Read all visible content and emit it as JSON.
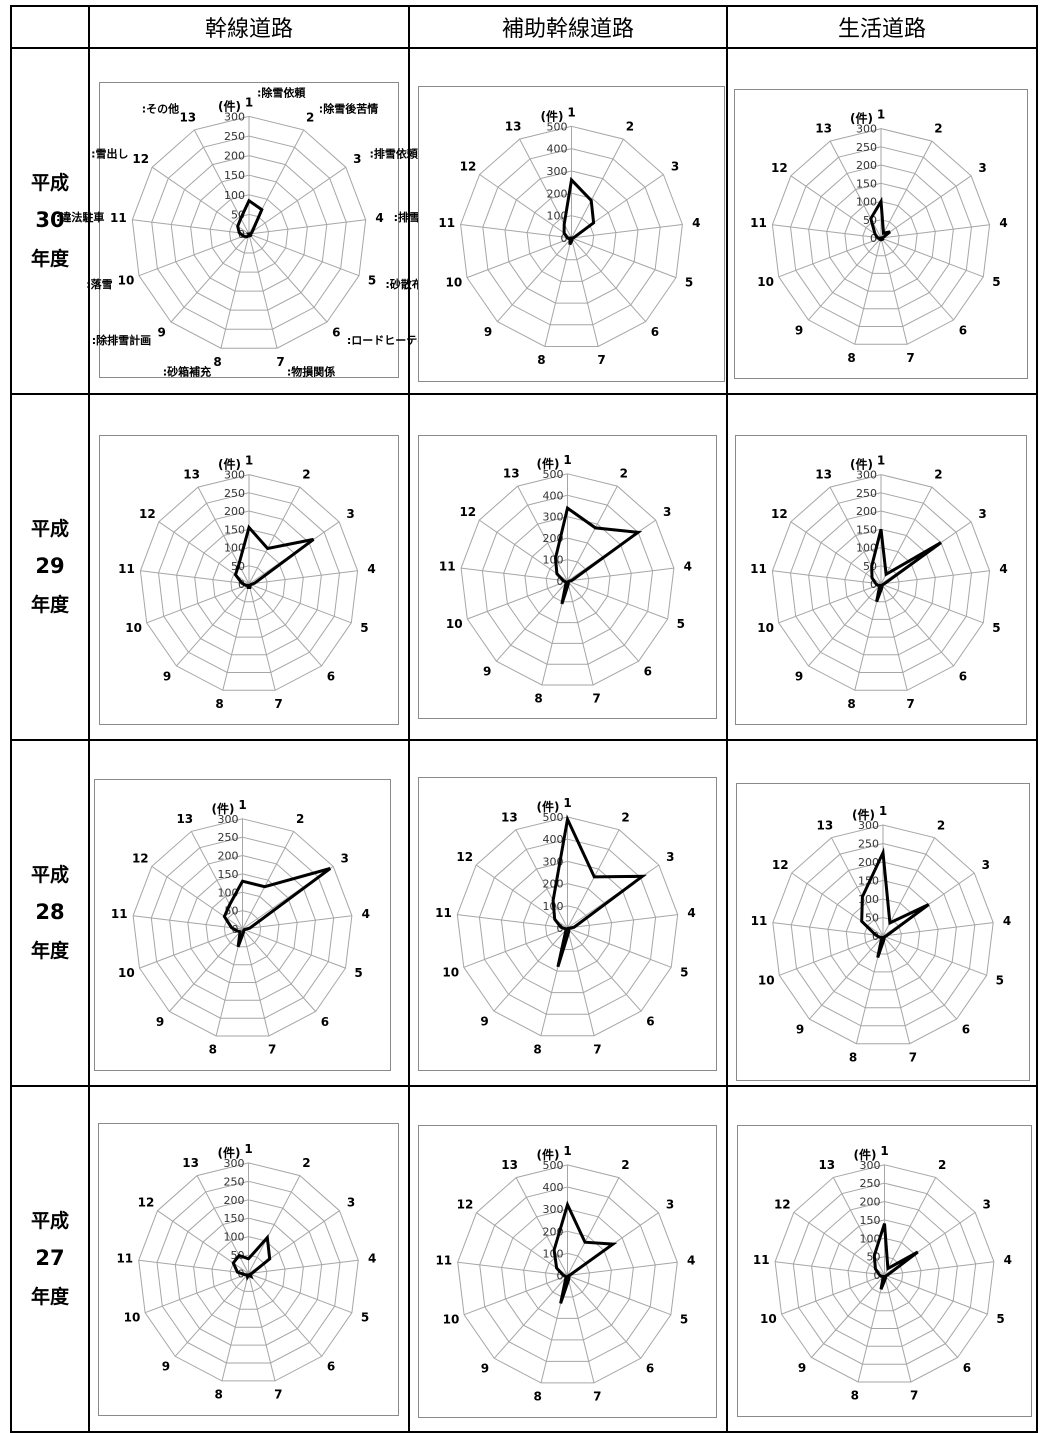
{
  "columns": [
    "幹線道路",
    "補助幹線道路",
    "生活道路"
  ],
  "rows": [
    {
      "era": "平成",
      "year": "30",
      "suffix": "年度"
    },
    {
      "era": "平成",
      "year": "29",
      "suffix": "年度"
    },
    {
      "era": "平成",
      "year": "28",
      "suffix": "年度"
    },
    {
      "era": "平成",
      "year": "27",
      "suffix": "年度"
    }
  ],
  "legend": {
    "1": ":除雪依頼",
    "2": ":除雪後苦情",
    "3": ":排雪依頼",
    "4": ":排雪後苦情",
    "5": ":砂散布依頼",
    "6": ":ロードヒーティング",
    "7": ":物損関係",
    "8": ":砂箱補充",
    "9": ":除排雪計画",
    "10": ":落雪",
    "11": ":違法駐車",
    "12": ":雪出し",
    "13": ":その他"
  },
  "chart_data": [
    {
      "type": "radar",
      "row": 0,
      "col": 0,
      "unit": "(件)",
      "categories": [
        "1",
        "2",
        "3",
        "4",
        "5",
        "6",
        "7",
        "8",
        "9",
        "10",
        "11",
        "12",
        "13"
      ],
      "ylim": [
        0,
        300
      ],
      "ticks": [
        0,
        50,
        100,
        150,
        200,
        250,
        300
      ],
      "values": [
        85,
        70,
        10,
        5,
        0,
        5,
        5,
        5,
        10,
        15,
        25,
        35,
        45
      ]
    },
    {
      "type": "radar",
      "row": 0,
      "col": 1,
      "unit": "(件)",
      "categories": [
        "1",
        "2",
        "3",
        "4",
        "5",
        "6",
        "7",
        "8",
        "9",
        "10",
        "11",
        "12",
        "13"
      ],
      "ylim": [
        0,
        500
      ],
      "ticks": [
        0,
        100,
        200,
        300,
        400,
        500
      ],
      "values": [
        260,
        190,
        120,
        10,
        0,
        5,
        10,
        30,
        10,
        10,
        20,
        40,
        70
      ]
    },
    {
      "type": "radar",
      "row": 0,
      "col": 2,
      "unit": "(件)",
      "categories": [
        "1",
        "2",
        "3",
        "4",
        "5",
        "6",
        "7",
        "8",
        "9",
        "10",
        "11",
        "12",
        "13"
      ],
      "ylim": [
        0,
        300
      ],
      "ticks": [
        0,
        50,
        100,
        150,
        200,
        250,
        300
      ],
      "values": [
        100,
        15,
        30,
        5,
        0,
        5,
        5,
        5,
        5,
        5,
        10,
        20,
        60
      ]
    },
    {
      "type": "radar",
      "row": 1,
      "col": 0,
      "unit": "(件)",
      "categories": [
        "1",
        "2",
        "3",
        "4",
        "5",
        "6",
        "7",
        "8",
        "9",
        "10",
        "11",
        "12",
        "13"
      ],
      "ylim": [
        0,
        300
      ],
      "ticks": [
        0,
        50,
        100,
        150,
        200,
        250,
        300
      ],
      "values": [
        155,
        110,
        215,
        15,
        5,
        5,
        10,
        10,
        5,
        10,
        20,
        45,
        60
      ]
    },
    {
      "type": "radar",
      "row": 1,
      "col": 1,
      "unit": "(件)",
      "categories": [
        "1",
        "2",
        "3",
        "4",
        "5",
        "6",
        "7",
        "8",
        "9",
        "10",
        "11",
        "12",
        "13"
      ],
      "ylim": [
        0,
        500
      ],
      "ticks": [
        0,
        100,
        200,
        300,
        400,
        500
      ],
      "values": [
        340,
        280,
        400,
        20,
        5,
        5,
        15,
        110,
        10,
        10,
        20,
        60,
        120
      ]
    },
    {
      "type": "radar",
      "row": 1,
      "col": 2,
      "unit": "(件)",
      "categories": [
        "1",
        "2",
        "3",
        "4",
        "5",
        "6",
        "7",
        "8",
        "9",
        "10",
        "11",
        "12",
        "13"
      ],
      "ylim": [
        0,
        300
      ],
      "ticks": [
        0,
        50,
        100,
        150,
        200,
        250,
        300
      ],
      "values": [
        150,
        30,
        200,
        10,
        5,
        5,
        10,
        50,
        5,
        10,
        15,
        30,
        55
      ]
    },
    {
      "type": "radar",
      "row": 2,
      "col": 0,
      "unit": "(件)",
      "categories": [
        "1",
        "2",
        "3",
        "4",
        "5",
        "6",
        "7",
        "8",
        "9",
        "10",
        "11",
        "12",
        "13"
      ],
      "ylim": [
        0,
        300
      ],
      "ticks": [
        0,
        50,
        100,
        150,
        200,
        250,
        300
      ],
      "values": [
        130,
        130,
        290,
        20,
        5,
        5,
        10,
        50,
        10,
        15,
        30,
        60,
        75
      ]
    },
    {
      "type": "radar",
      "row": 2,
      "col": 1,
      "unit": "(件)",
      "categories": [
        "1",
        "2",
        "3",
        "4",
        "5",
        "6",
        "7",
        "8",
        "9",
        "10",
        "11",
        "12",
        "13"
      ],
      "ylim": [
        0,
        500
      ],
      "ticks": [
        0,
        100,
        200,
        300,
        400,
        500
      ],
      "values": [
        490,
        260,
        410,
        30,
        5,
        10,
        20,
        180,
        10,
        10,
        30,
        70,
        140
      ]
    },
    {
      "type": "radar",
      "row": 2,
      "col": 2,
      "unit": "(件)",
      "categories": [
        "1",
        "2",
        "3",
        "4",
        "5",
        "6",
        "7",
        "8",
        "9",
        "10",
        "11",
        "12",
        "13"
      ],
      "ylim": [
        0,
        300
      ],
      "ticks": [
        0,
        50,
        100,
        150,
        200,
        250,
        300
      ],
      "values": [
        225,
        40,
        150,
        10,
        5,
        5,
        10,
        60,
        5,
        10,
        20,
        70,
        120
      ]
    },
    {
      "type": "radar",
      "row": 3,
      "col": 0,
      "unit": "(件)",
      "categories": [
        "1",
        "2",
        "3",
        "4",
        "5",
        "6",
        "7",
        "8",
        "9",
        "10",
        "11",
        "12",
        "13"
      ],
      "ylim": [
        0,
        300
      ],
      "ticks": [
        0,
        50,
        100,
        150,
        200,
        250,
        300
      ],
      "values": [
        40,
        110,
        70,
        10,
        5,
        10,
        5,
        10,
        5,
        10,
        30,
        50,
        55
      ]
    },
    {
      "type": "radar",
      "row": 3,
      "col": 1,
      "unit": "(件)",
      "categories": [
        "1",
        "2",
        "3",
        "4",
        "5",
        "6",
        "7",
        "8",
        "9",
        "10",
        "11",
        "12",
        "13"
      ],
      "ylim": [
        0,
        500
      ],
      "ticks": [
        0,
        100,
        200,
        300,
        400,
        500
      ],
      "values": [
        320,
        170,
        250,
        10,
        5,
        10,
        20,
        130,
        10,
        10,
        20,
        60,
        130
      ]
    },
    {
      "type": "radar",
      "row": 3,
      "col": 2,
      "unit": "(件)",
      "categories": [
        "1",
        "2",
        "3",
        "4",
        "5",
        "6",
        "7",
        "8",
        "9",
        "10",
        "11",
        "12",
        "13"
      ],
      "ylim": [
        0,
        300
      ],
      "ticks": [
        0,
        50,
        100,
        150,
        200,
        250,
        300
      ],
      "values": [
        140,
        20,
        110,
        10,
        5,
        5,
        10,
        40,
        5,
        10,
        15,
        30,
        60
      ]
    }
  ]
}
